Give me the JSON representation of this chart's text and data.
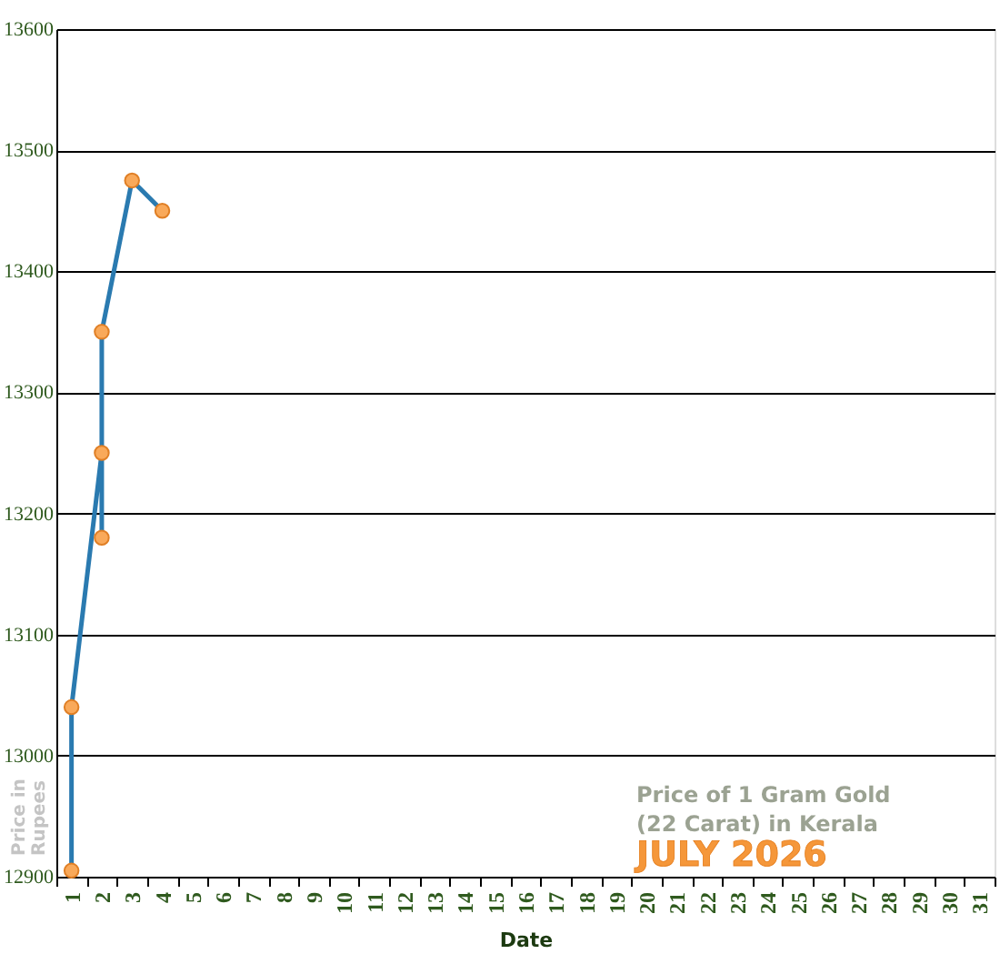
{
  "chart_data": {
    "type": "line",
    "title": "Price of 1 Gram Gold (22 Carat) in Kerala",
    "subtitle": "JULY 2026",
    "xlabel": "Date",
    "ylabel": "Price in Rupees",
    "categories": [
      "1",
      "2",
      "3",
      "4",
      "5",
      "6",
      "7",
      "8",
      "9",
      "10",
      "11",
      "12",
      "13",
      "14",
      "15",
      "16",
      "17",
      "18",
      "19",
      "20",
      "21",
      "22",
      "23",
      "24",
      "25",
      "26",
      "27",
      "28",
      "29",
      "30",
      "31"
    ],
    "series": [
      {
        "color": "#2a7ab0",
        "colors": [
          "#f9a95a",
          "#f9a95a",
          "#f9a95a",
          "#f9a95a",
          "#f9a95a",
          "#f9a95a",
          "#f9a95a"
        ],
        "x": [
          "1",
          "1",
          "2",
          "2",
          "2",
          "3",
          "4"
        ],
        "values": [
          12905,
          13040,
          13250,
          13180,
          13350,
          13475,
          13450
        ]
      }
    ],
    "ylim": [
      12900,
      13600
    ],
    "yticks": [
      12900,
      13000,
      13100,
      13200,
      13300,
      13400,
      13500,
      13600
    ],
    "grid": "y",
    "marker": "circle"
  }
}
